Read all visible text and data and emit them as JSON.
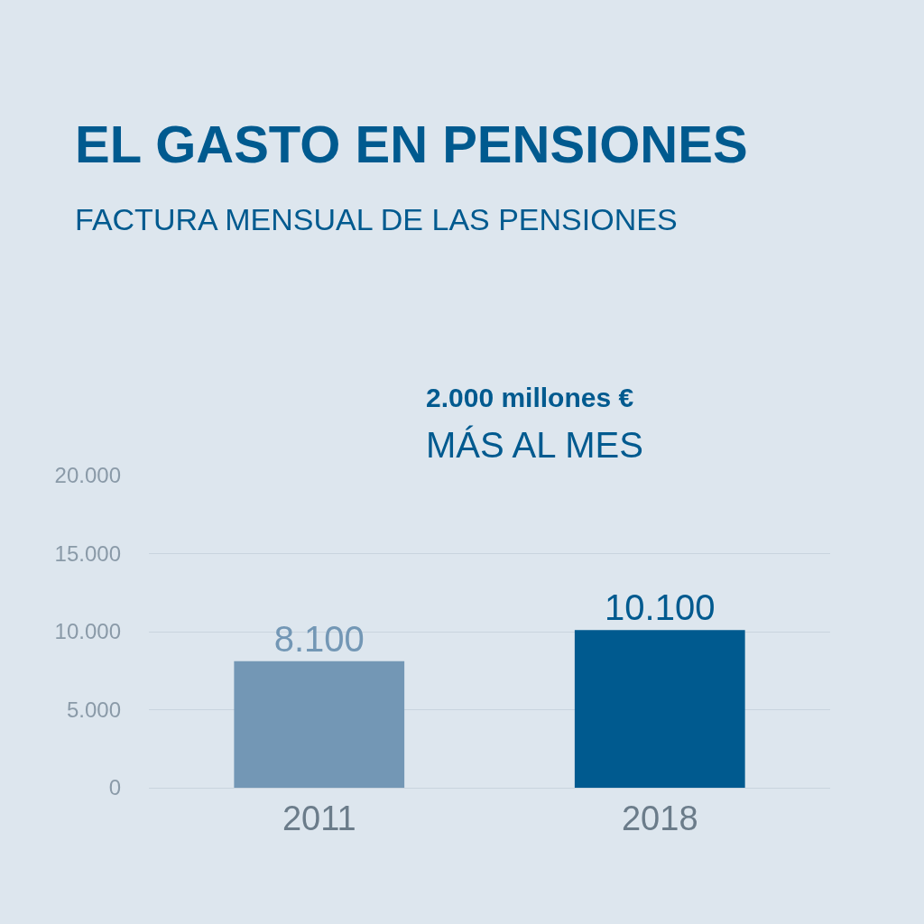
{
  "chart_data": {
    "type": "bar",
    "title": "EL GASTO EN PENSIONES",
    "subtitle": "FACTURA MENSUAL DE LAS PENSIONES",
    "categories": [
      "2011",
      "2018"
    ],
    "values": [
      8100,
      10100
    ],
    "colors": [
      "#7397b5",
      "#005a8f"
    ],
    "value_labels": [
      "8.100",
      "10.100"
    ],
    "ylim": [
      0,
      20000
    ],
    "yticks": [
      {
        "value": 0,
        "label": "0"
      },
      {
        "value": 5000,
        "label": "5.000"
      },
      {
        "value": 10000,
        "label": "10.000"
      },
      {
        "value": 15000,
        "label": "15.000"
      },
      {
        "value": 20000,
        "label": "20.000"
      }
    ],
    "grid": "y",
    "annotations": [
      "2.000 millones €",
      "MÁS AL MES"
    ]
  }
}
